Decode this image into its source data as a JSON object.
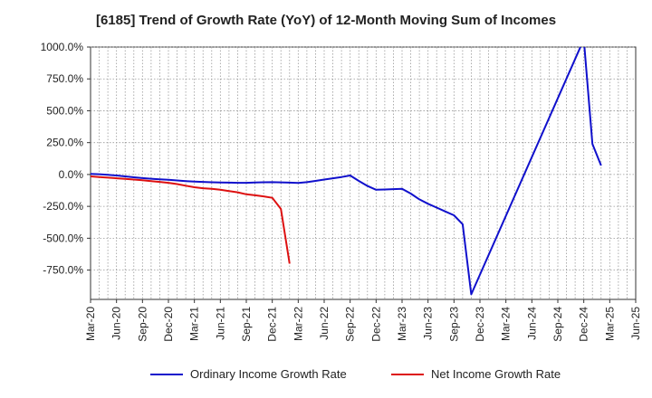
{
  "chart_data": {
    "type": "line",
    "title": "[6185]  Trend of Growth Rate (YoY) of 12-Month Moving Sum of Incomes",
    "xlabel": "",
    "ylabel": "",
    "x_tick_labels": [
      "Mar-20",
      "Jun-20",
      "Sep-20",
      "Dec-20",
      "Mar-21",
      "Jun-21",
      "Sep-21",
      "Dec-21",
      "Mar-22",
      "Jun-22",
      "Sep-22",
      "Dec-22",
      "Mar-23",
      "Jun-23",
      "Sep-23",
      "Dec-23",
      "Mar-24",
      "Jun-24",
      "Sep-24",
      "Dec-24",
      "Mar-25",
      "Jun-25"
    ],
    "y_tick_values": [
      1000,
      750,
      500,
      250,
      0,
      -250,
      -500,
      -750
    ],
    "y_tick_labels": [
      "1000.0%",
      "750.0%",
      "500.0%",
      "250.0%",
      "0.0%",
      "-250.0%",
      "-500.0%",
      "-750.0%"
    ],
    "ylim": [
      -980,
      1000
    ],
    "grid": true,
    "legend_position": "bottom",
    "series": [
      {
        "name": "Ordinary Income Growth Rate",
        "color": "#1010cc",
        "x": [
          "Mar-20",
          "Apr-20",
          "May-20",
          "Jun-20",
          "Jul-20",
          "Aug-20",
          "Sep-20",
          "Oct-20",
          "Nov-20",
          "Dec-20",
          "Jan-21",
          "Feb-21",
          "Mar-21",
          "Apr-21",
          "May-21",
          "Jun-21",
          "Jul-21",
          "Aug-21",
          "Sep-21",
          "Oct-21",
          "Nov-21",
          "Dec-21",
          "Jan-22",
          "Feb-22",
          "Mar-22",
          "Apr-22",
          "May-22",
          "Jun-22",
          "Jul-22",
          "Aug-22",
          "Sep-22",
          "Oct-22",
          "Nov-22",
          "Dec-22",
          "Jan-23",
          "Feb-23",
          "Mar-23",
          "Apr-23",
          "May-23",
          "Jun-23",
          "Jul-23",
          "Aug-23",
          "Sep-23",
          "Oct-23",
          "Nov-23",
          "Dec-24",
          "Jan-25",
          "Feb-25"
        ],
        "values": [
          5,
          2,
          -2,
          -8,
          -15,
          -22,
          -28,
          -33,
          -38,
          -42,
          -47,
          -52,
          -55,
          -58,
          -61,
          -63,
          -64,
          -65,
          -65,
          -63,
          -61,
          -60,
          -62,
          -64,
          -66,
          -60,
          -50,
          -40,
          -30,
          -20,
          -8,
          -50,
          -90,
          -120,
          -118,
          -115,
          -112,
          -150,
          -195,
          -230,
          -260,
          -290,
          -320,
          -390,
          -940,
          1060,
          240,
          70
        ]
      },
      {
        "name": "Net Income Growth Rate",
        "color": "#dd1010",
        "x": [
          "Mar-20",
          "Apr-20",
          "May-20",
          "Jun-20",
          "Jul-20",
          "Aug-20",
          "Sep-20",
          "Oct-20",
          "Nov-20",
          "Dec-20",
          "Jan-21",
          "Feb-21",
          "Mar-21",
          "Apr-21",
          "May-21",
          "Jun-21",
          "Jul-21",
          "Aug-21",
          "Sep-21",
          "Oct-21",
          "Nov-21",
          "Dec-21",
          "Jan-22",
          "Feb-22"
        ],
        "values": [
          -15,
          -20,
          -25,
          -30,
          -35,
          -40,
          -45,
          -52,
          -58,
          -65,
          -75,
          -88,
          -100,
          -108,
          -113,
          -120,
          -130,
          -140,
          -155,
          -163,
          -172,
          -183,
          -270,
          -700
        ]
      }
    ]
  }
}
